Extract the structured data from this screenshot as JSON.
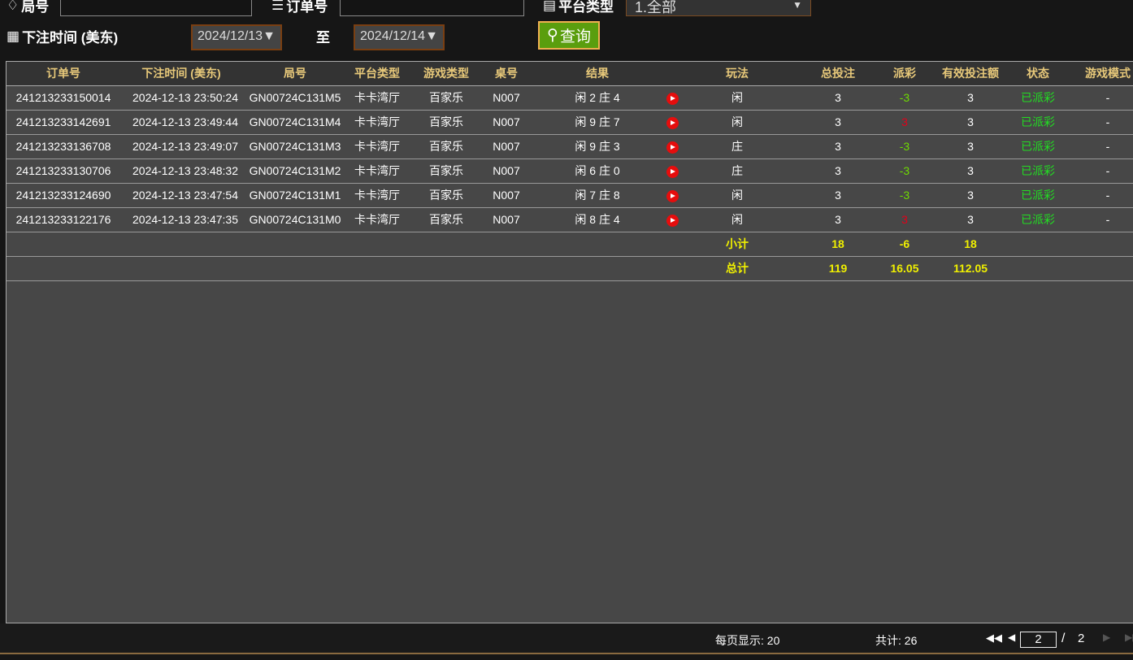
{
  "filters": {
    "round_label": "局号",
    "round_value": "",
    "order_label": "订单号",
    "order_value": "",
    "platform_label": "平台类型",
    "platform_value": "1.全部",
    "time_label": "下注时间 (美东)",
    "date_from": "2024/12/13▼",
    "to_label": "至",
    "date_to": "2024/12/14▼",
    "query_label": "查询"
  },
  "table": {
    "headers": [
      "订单号",
      "下注时间 (美东)",
      "局号",
      "平台类型",
      "游戏类型",
      "桌号",
      "结果",
      "",
      "玩法",
      "总投注",
      "派彩",
      "有效投注额",
      "状态",
      "游戏模式"
    ],
    "rows": [
      {
        "order": "241213233150014",
        "time": "2024-12-13 23:50:24",
        "round": "GN00724C131M5",
        "platform": "卡卡湾厅",
        "game": "百家乐",
        "desk": "N007",
        "result": "闲 2 庄 4",
        "play": "闲",
        "bet": "3",
        "payout": "-3",
        "payout_color": "#6fdc00",
        "valid": "3",
        "status": "已派彩",
        "mode": "-"
      },
      {
        "order": "241213233142691",
        "time": "2024-12-13 23:49:44",
        "round": "GN00724C131M4",
        "platform": "卡卡湾厅",
        "game": "百家乐",
        "desk": "N007",
        "result": "闲 9 庄 7",
        "play": "闲",
        "bet": "3",
        "payout": "3",
        "payout_color": "#e2001a",
        "valid": "3",
        "status": "已派彩",
        "mode": "-"
      },
      {
        "order": "241213233136708",
        "time": "2024-12-13 23:49:07",
        "round": "GN00724C131M3",
        "platform": "卡卡湾厅",
        "game": "百家乐",
        "desk": "N007",
        "result": "闲 9 庄 3",
        "play": "庄",
        "bet": "3",
        "payout": "-3",
        "payout_color": "#6fdc00",
        "valid": "3",
        "status": "已派彩",
        "mode": "-"
      },
      {
        "order": "241213233130706",
        "time": "2024-12-13 23:48:32",
        "round": "GN00724C131M2",
        "platform": "卡卡湾厅",
        "game": "百家乐",
        "desk": "N007",
        "result": "闲 6 庄 0",
        "play": "庄",
        "bet": "3",
        "payout": "-3",
        "payout_color": "#6fdc00",
        "valid": "3",
        "status": "已派彩",
        "mode": "-"
      },
      {
        "order": "241213233124690",
        "time": "2024-12-13 23:47:54",
        "round": "GN00724C131M1",
        "platform": "卡卡湾厅",
        "game": "百家乐",
        "desk": "N007",
        "result": "闲 7 庄 8",
        "play": "闲",
        "bet": "3",
        "payout": "-3",
        "payout_color": "#6fdc00",
        "valid": "3",
        "status": "已派彩",
        "mode": "-"
      },
      {
        "order": "241213233122176",
        "time": "2024-12-13 23:47:35",
        "round": "GN00724C131M0",
        "platform": "卡卡湾厅",
        "game": "百家乐",
        "desk": "N007",
        "result": "闲 8 庄 4",
        "play": "闲",
        "bet": "3",
        "payout": "3",
        "payout_color": "#e2001a",
        "valid": "3",
        "status": "已派彩",
        "mode": "-"
      }
    ],
    "subtotal": {
      "label": "小计",
      "bet": "18",
      "payout": "-6",
      "valid": "18"
    },
    "total": {
      "label": "总计",
      "bet": "119",
      "payout": "16.05",
      "valid": "112.05"
    }
  },
  "footer": {
    "per_page": "每页显示: 20",
    "total": "共计: 26",
    "current_page": "2",
    "separator": "/",
    "total_pages": "2"
  }
}
